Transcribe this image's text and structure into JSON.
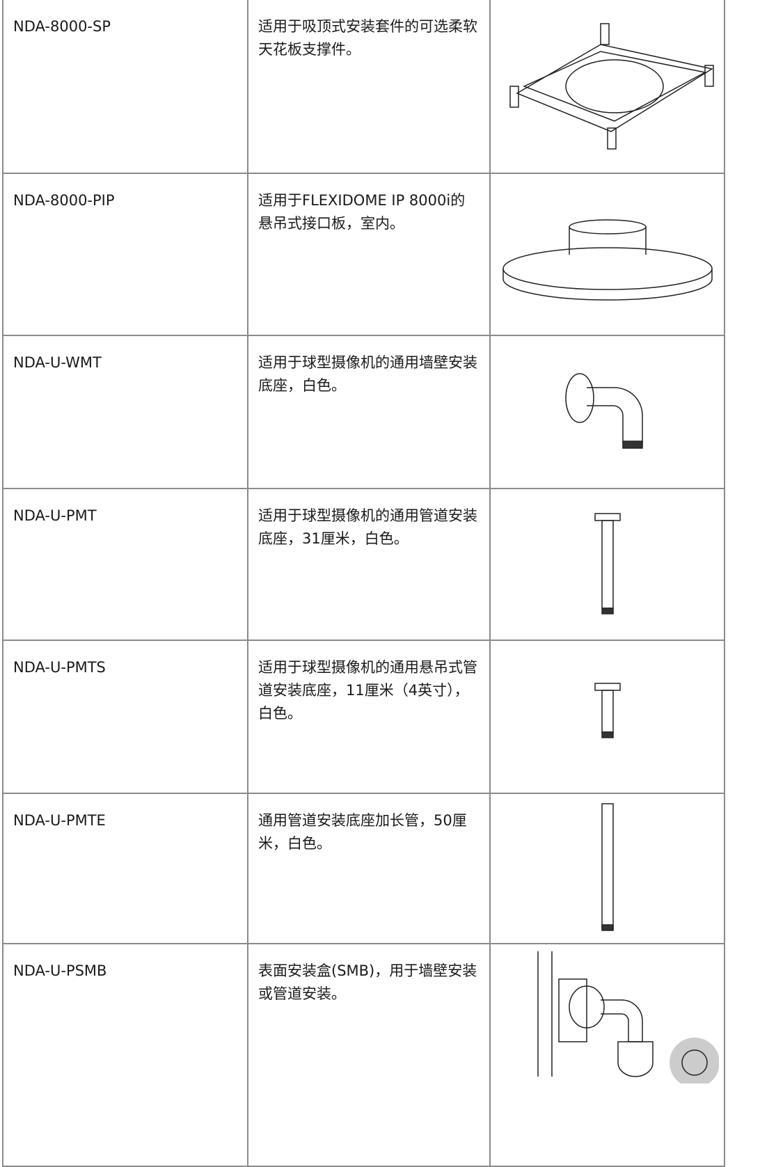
{
  "table": {
    "rows": [
      [
        "NDA-8000-SP",
        "适用于吸顶式安装套件的可选柔软天花板支撑件。"
      ],
      [
        "NDA-8000-PIP",
        "适用于FLEXIDOME IP 8000i的悬吊式接口板，室内。"
      ],
      [
        "NDA-U-WMT",
        "适用于球型摄像机的通用墙壁安装底座，白色。"
      ],
      [
        "NDA-U-PMT",
        "适用于球型摄像机的通用管道安装底座，31厘米，白色。"
      ],
      [
        "NDA-U-PMTS",
        "适用于球型摄像机的通用悬吊式管道安装底座，11厘米（4英寸），白色。"
      ],
      [
        "NDA-U-PMTE",
        "通用管道安装底座加长管，50厘米，白色。"
      ],
      [
        "NDA-U-PSMB",
        "表面安装盒(SMB)，用于墙壁安装或管道安装。"
      ]
    ]
  }
}
